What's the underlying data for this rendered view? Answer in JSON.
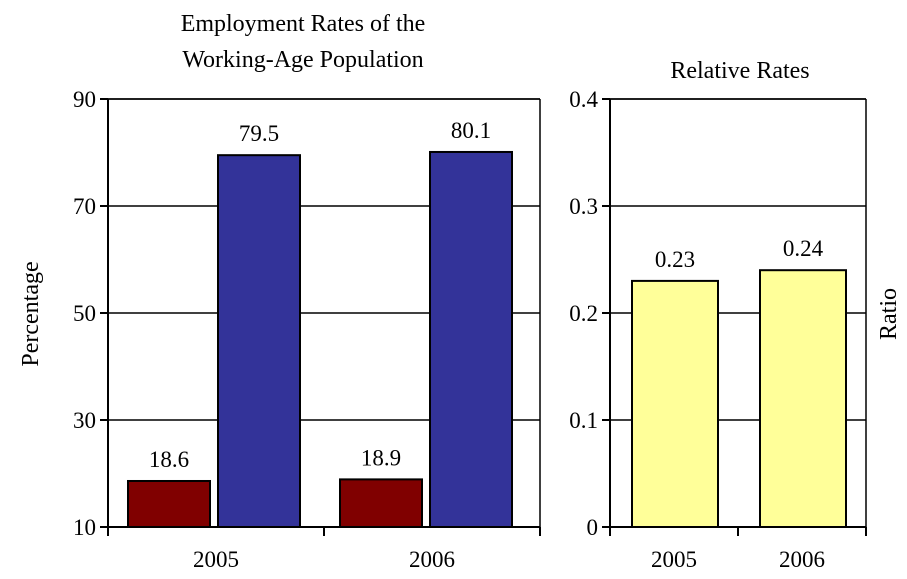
{
  "chart_data": [
    {
      "type": "bar",
      "title_lines": [
        "Employment Rates of the",
        "Working-Age Population"
      ],
      "ylabel": "Percentage",
      "xlabel": "",
      "categories": [
        "2005",
        "2006"
      ],
      "ylim": [
        10,
        90
      ],
      "yticks": [
        "10",
        "30",
        "50",
        "70",
        "90"
      ],
      "grid": true,
      "legend": "none",
      "series": [
        {
          "values": [
            18.6,
            18.9
          ],
          "labels": [
            "18.6",
            "18.9"
          ],
          "color": "#800000"
        },
        {
          "values": [
            79.5,
            80.1
          ],
          "labels": [
            "79.5",
            "80.1"
          ],
          "color": "#333399"
        }
      ]
    },
    {
      "type": "bar",
      "title": "Relative Rates",
      "ylabel": "Ratio",
      "xlabel": "",
      "categories": [
        "2005",
        "2006"
      ],
      "ylim": [
        0,
        0.4
      ],
      "yticks": [
        "0",
        "0.1",
        "0.2",
        "0.3",
        "0.4"
      ],
      "grid": true,
      "legend": "none",
      "series": [
        {
          "values": [
            0.23,
            0.24
          ],
          "labels": [
            "0.23",
            "0.24"
          ],
          "color": "#FFFF99"
        }
      ]
    }
  ]
}
